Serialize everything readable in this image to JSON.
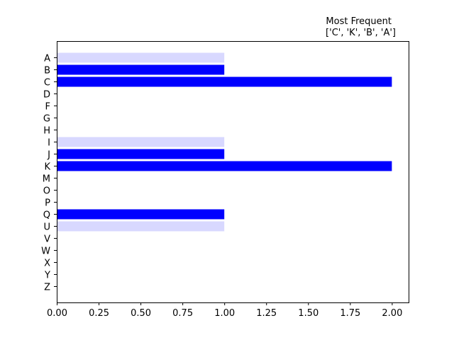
{
  "chart_data": {
    "type": "bar",
    "orientation": "horizontal",
    "title_lines": [
      "Most Frequent",
      "['C', 'K', 'B', 'A']"
    ],
    "title_align": "right",
    "xlabel": "",
    "ylabel": "",
    "xlim": [
      0,
      2.1
    ],
    "x_ticks": [
      0.0,
      0.25,
      0.5,
      0.75,
      1.0,
      1.25,
      1.5,
      1.75,
      2.0
    ],
    "x_tick_labels": [
      "0.00",
      "0.25",
      "0.50",
      "0.75",
      "1.00",
      "1.25",
      "1.50",
      "1.75",
      "2.00"
    ],
    "categories": [
      "A",
      "B",
      "C",
      "D",
      "F",
      "G",
      "H",
      "I",
      "J",
      "K",
      "M",
      "O",
      "P",
      "Q",
      "U",
      "V",
      "W",
      "X",
      "Y",
      "Z"
    ],
    "values": [
      1,
      1,
      2,
      0,
      0,
      0,
      0,
      1,
      1,
      2,
      0,
      0,
      0,
      1,
      1,
      0,
      0,
      0,
      0,
      0
    ],
    "bar_colors": [
      "#d8d8ff",
      "#0000ff",
      "#0000ff",
      "#0000ff",
      "#0000ff",
      "#0000ff",
      "#0000ff",
      "#d8d8ff",
      "#0000ff",
      "#0000ff",
      "#0000ff",
      "#0000ff",
      "#0000ff",
      "#0000ff",
      "#d8d8ff",
      "#0000ff",
      "#0000ff",
      "#0000ff",
      "#0000ff",
      "#0000ff"
    ],
    "grid": false,
    "legend": "none"
  }
}
